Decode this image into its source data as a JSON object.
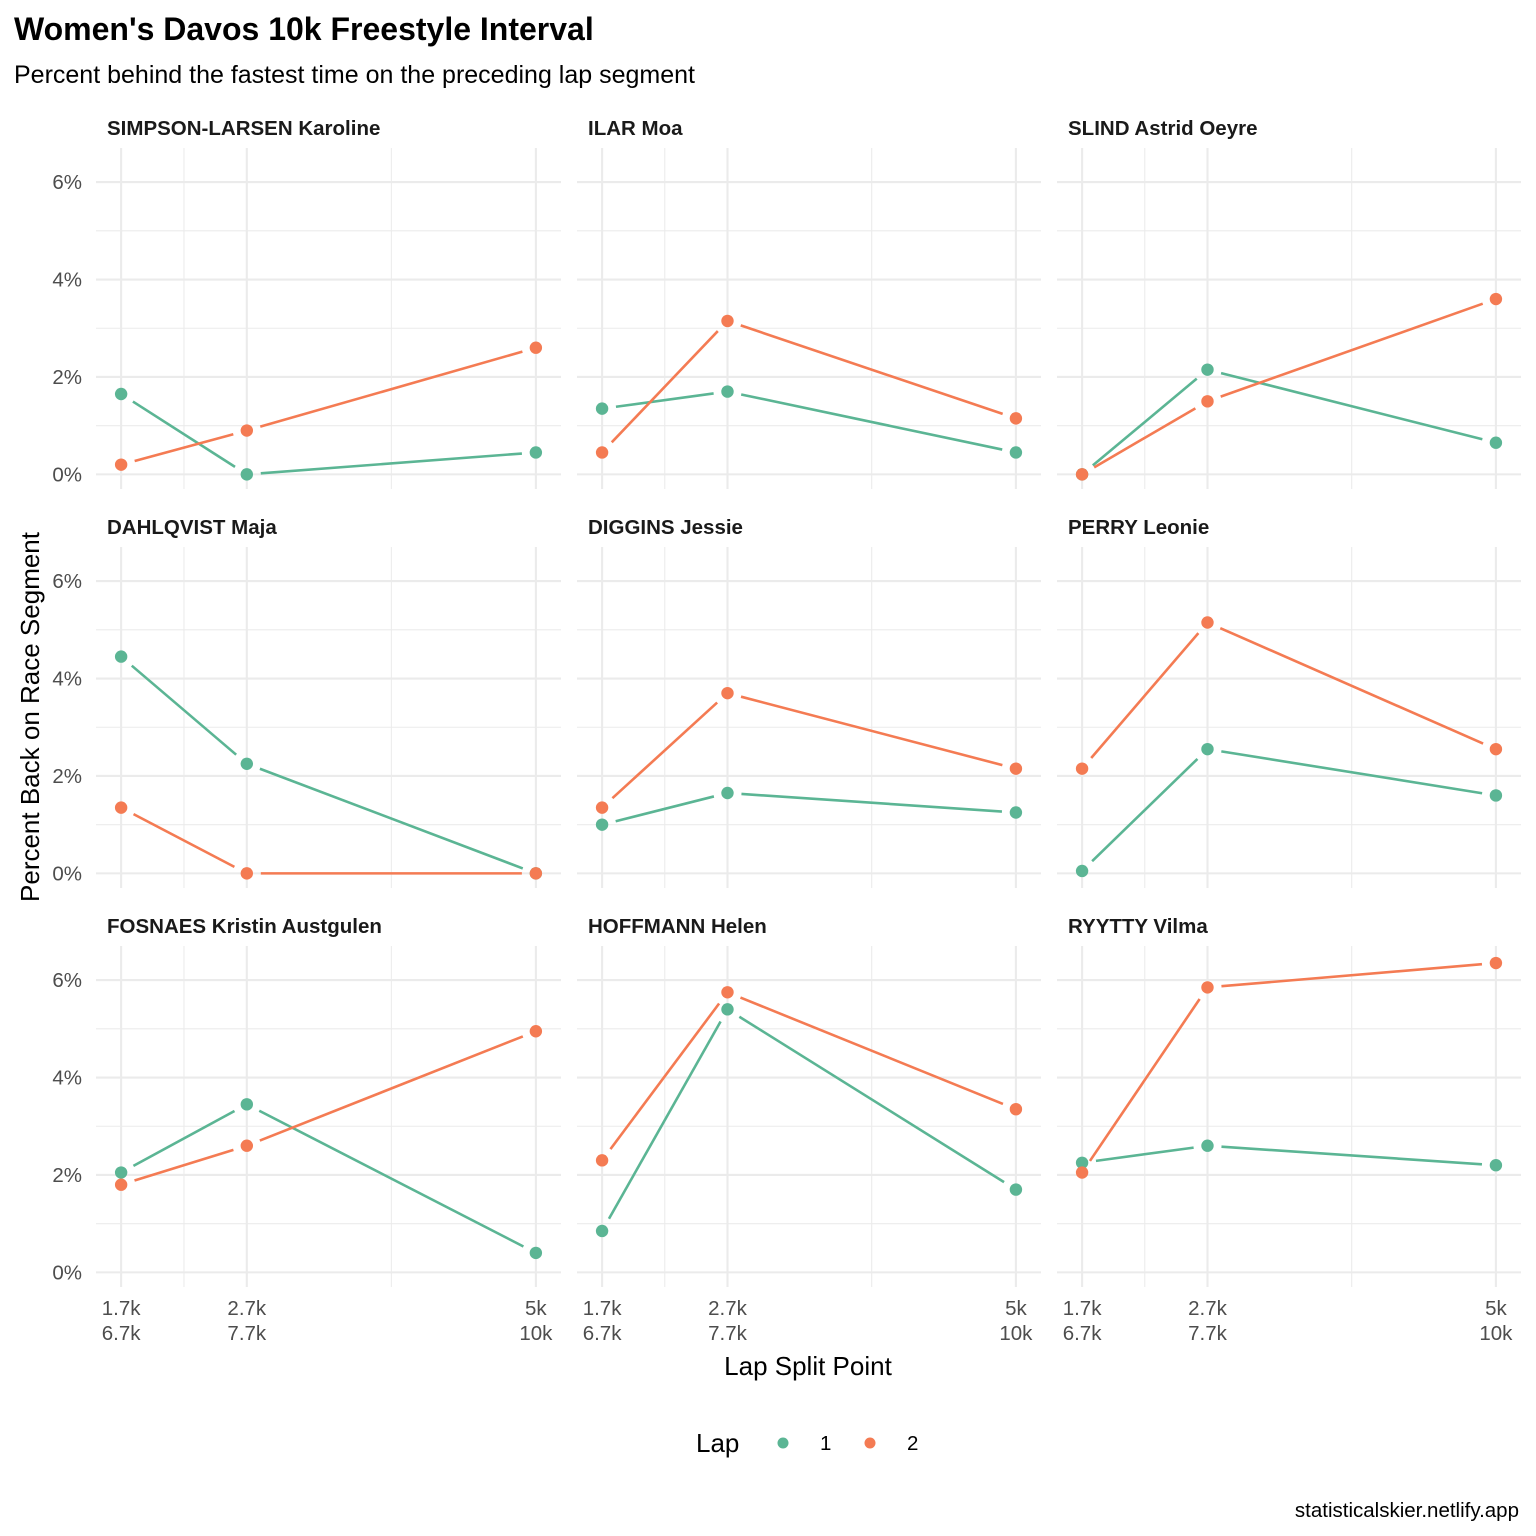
{
  "title": "Women's Davos 10k Freestyle Interval",
  "subtitle": "Percent behind the fastest time on the preceding lap segment",
  "caption": "statisticalskier.netlify.app",
  "colors": {
    "1": "#5BB594",
    "2": "#F47B53"
  },
  "chart_data": {
    "type": "line",
    "facet_by": "athlete",
    "xlabel": "Lap Split Point",
    "ylabel": "Percent Back on Race Segment",
    "x_categories": [
      "1.7k\n6.7k",
      "2.7k\n7.7k",
      "5k\n10k"
    ],
    "x_tick_lines": [
      [
        "1.7k",
        "6.7k"
      ],
      [
        "2.7k",
        "7.7k"
      ],
      [
        "5k",
        "10k"
      ]
    ],
    "x_positions": [
      1.7,
      2.7,
      5.0
    ],
    "y_ticks": [
      0,
      2,
      4,
      6
    ],
    "y_tick_labels": [
      "0%",
      "2%",
      "4%",
      "6%"
    ],
    "ylim": [
      -0.3,
      6.7
    ],
    "legend": {
      "title": "Lap",
      "entries": [
        "1",
        "2"
      ],
      "position": "bottom"
    },
    "panels": [
      {
        "athlete": "SIMPSON-LARSEN Karoline",
        "series": [
          {
            "name": "1",
            "values": [
              1.65,
              0.0,
              0.45
            ]
          },
          {
            "name": "2",
            "values": [
              0.2,
              0.9,
              2.6
            ]
          }
        ]
      },
      {
        "athlete": "ILAR Moa",
        "series": [
          {
            "name": "1",
            "values": [
              1.35,
              1.7,
              0.45
            ]
          },
          {
            "name": "2",
            "values": [
              0.45,
              3.15,
              1.15
            ]
          }
        ]
      },
      {
        "athlete": "SLIND Astrid Oeyre",
        "series": [
          {
            "name": "1",
            "values": [
              0.0,
              2.15,
              0.65
            ]
          },
          {
            "name": "2",
            "values": [
              0.0,
              1.5,
              3.6
            ]
          }
        ]
      },
      {
        "athlete": "DAHLQVIST Maja",
        "series": [
          {
            "name": "1",
            "values": [
              4.45,
              2.25,
              0.0
            ]
          },
          {
            "name": "2",
            "values": [
              1.35,
              0.0,
              0.0
            ]
          }
        ]
      },
      {
        "athlete": "DIGGINS Jessie",
        "series": [
          {
            "name": "1",
            "values": [
              1.0,
              1.65,
              1.25
            ]
          },
          {
            "name": "2",
            "values": [
              1.35,
              3.7,
              2.15
            ]
          }
        ]
      },
      {
        "athlete": "PERRY Leonie",
        "series": [
          {
            "name": "1",
            "values": [
              0.05,
              2.55,
              1.6
            ]
          },
          {
            "name": "2",
            "values": [
              2.15,
              5.15,
              2.55
            ]
          }
        ]
      },
      {
        "athlete": "FOSNAES Kristin Austgulen",
        "series": [
          {
            "name": "1",
            "values": [
              2.05,
              3.45,
              0.4
            ]
          },
          {
            "name": "2",
            "values": [
              1.8,
              2.6,
              4.95
            ]
          }
        ]
      },
      {
        "athlete": "HOFFMANN Helen",
        "series": [
          {
            "name": "1",
            "values": [
              0.85,
              5.4,
              1.7
            ]
          },
          {
            "name": "2",
            "values": [
              2.3,
              5.75,
              3.35
            ]
          }
        ]
      },
      {
        "athlete": "RYYTTY Vilma",
        "series": [
          {
            "name": "1",
            "values": [
              2.25,
              2.6,
              2.2
            ]
          },
          {
            "name": "2",
            "values": [
              2.05,
              5.85,
              6.35
            ]
          }
        ]
      }
    ]
  }
}
